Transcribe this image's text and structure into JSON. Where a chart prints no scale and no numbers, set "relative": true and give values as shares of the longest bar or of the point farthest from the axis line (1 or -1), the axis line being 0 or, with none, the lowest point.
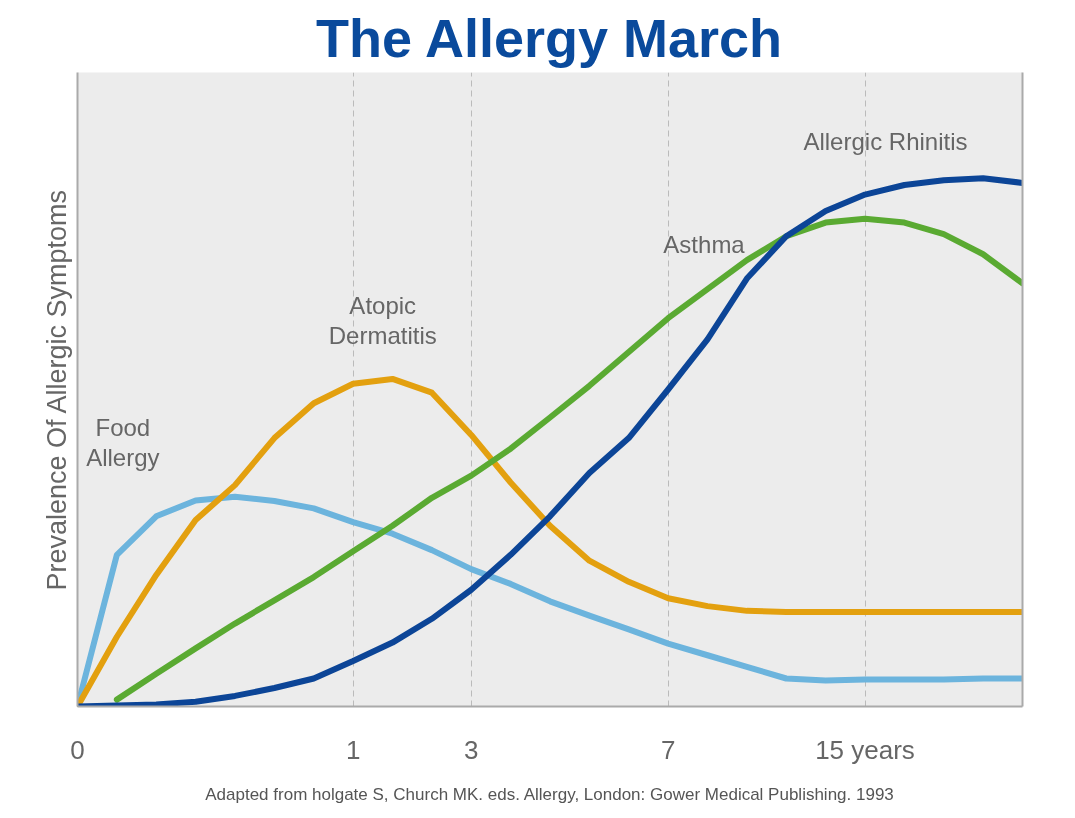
{
  "chart_data": {
    "type": "line",
    "title": "The Allergy March",
    "ylabel": "Prevalence Of Allergic Symptoms",
    "relative": true,
    "categories": [
      "0",
      null,
      null,
      null,
      null,
      null,
      null,
      "1",
      null,
      null,
      "3",
      null,
      null,
      null,
      null,
      "7",
      null,
      null,
      null,
      null,
      "15 years",
      null,
      null,
      null,
      null
    ],
    "grid": "x",
    "series": [
      {
        "name": "Food\nAllergy",
        "color": "#6cb4dd",
        "values": [
          0,
          0.287,
          0.36,
          0.39,
          0.397,
          0.389,
          0.375,
          0.349,
          0.327,
          0.296,
          0.26,
          0.232,
          0.199,
          0.172,
          0.146,
          0.119,
          0.097,
          0.075,
          0.053,
          0.049,
          0.051,
          0.051,
          0.051,
          0.053,
          0.053
        ]
      },
      {
        "name": "Atopic\nDermatitis",
        "color": "#e3a00f",
        "values": [
          0,
          0.132,
          0.249,
          0.353,
          0.419,
          0.508,
          0.574,
          0.611,
          0.62,
          0.594,
          0.514,
          0.424,
          0.342,
          0.276,
          0.236,
          0.205,
          0.19,
          0.181,
          0.179,
          0.179,
          0.179,
          0.179,
          0.179,
          0.179,
          0.179
        ]
      },
      {
        "name": "Asthma",
        "color": "#5aaa32",
        "values": [
          null,
          0.013,
          0.062,
          0.11,
          0.157,
          0.201,
          0.245,
          0.294,
          0.342,
          0.395,
          0.437,
          0.488,
          0.547,
          0.607,
          0.671,
          0.735,
          0.79,
          0.845,
          0.89,
          0.916,
          0.923,
          0.916,
          0.894,
          0.856,
          0.801
        ]
      },
      {
        "name": "Allergic Rhinitis",
        "color": "#0c4597",
        "values": [
          0,
          0.002,
          0.004,
          0.009,
          0.02,
          0.035,
          0.053,
          0.086,
          0.121,
          0.166,
          0.221,
          0.287,
          0.36,
          0.442,
          0.508,
          0.6,
          0.695,
          0.81,
          0.89,
          0.938,
          0.969,
          0.987,
          0.996,
          1.0,
          0.991
        ]
      }
    ],
    "annotations": [
      "Adapted from holgate S, Church MK. eds. Allergy, London: Gower Medical Publishing. 1993"
    ]
  }
}
